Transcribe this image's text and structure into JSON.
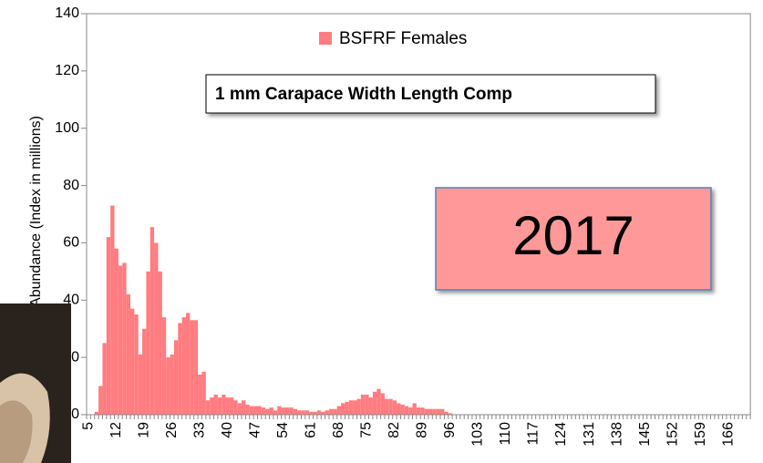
{
  "chart_data": {
    "type": "bar",
    "y_label": "Abundance (Index in millions)",
    "legend": "BSFRF Females",
    "annotations": [
      "1 mm Carapace Width Length Comp",
      "2017"
    ],
    "color": "#ff7c80",
    "ylim": [
      0,
      140
    ],
    "yticks": [
      0,
      20,
      40,
      60,
      80,
      100,
      120,
      140
    ],
    "grid": false,
    "categories": [
      5,
      null,
      null,
      null,
      null,
      null,
      null,
      12,
      null,
      null,
      null,
      null,
      null,
      null,
      19,
      null,
      null,
      null,
      null,
      null,
      null,
      26,
      null,
      null,
      null,
      null,
      null,
      null,
      33,
      null,
      null,
      null,
      null,
      null,
      null,
      40,
      null,
      null,
      null,
      null,
      null,
      null,
      47,
      null,
      null,
      null,
      null,
      null,
      null,
      54,
      null,
      null,
      null,
      null,
      null,
      null,
      61,
      null,
      null,
      null,
      null,
      null,
      null,
      68,
      null,
      null,
      null,
      null,
      null,
      null,
      75,
      null,
      null,
      null,
      null,
      null,
      null,
      82,
      null,
      null,
      null,
      null,
      null,
      null,
      89,
      null,
      null,
      null,
      null,
      null,
      null,
      96,
      null,
      null,
      null,
      null,
      null,
      null,
      103,
      null,
      null,
      null,
      null,
      null,
      null,
      110,
      null,
      null,
      null,
      null,
      null,
      null,
      117,
      null,
      null,
      null,
      null,
      null,
      null,
      124,
      null,
      null,
      null,
      null,
      null,
      null,
      131,
      null,
      null,
      null,
      null,
      null,
      null,
      138,
      null,
      null,
      null,
      null,
      null,
      null,
      145,
      null,
      null,
      null,
      null,
      null,
      null,
      152,
      null,
      null,
      null,
      null,
      null,
      null,
      159,
      null,
      null,
      null,
      null,
      null,
      null,
      166,
      null,
      null,
      null,
      null,
      null
    ],
    "values": [
      0,
      0,
      1,
      10,
      25,
      62,
      73,
      58,
      52,
      53,
      42,
      37,
      35,
      21,
      30,
      50,
      65.5,
      60,
      50,
      34,
      20,
      21,
      26,
      32,
      34,
      35.5,
      33,
      33,
      14,
      15,
      5,
      6,
      7,
      6,
      7,
      6,
      6,
      5,
      4,
      5,
      3.5,
      3,
      3,
      3,
      2.5,
      2,
      2.5,
      1.5,
      3,
      2.5,
      2.5,
      2.5,
      2,
      1.5,
      1.5,
      1.5,
      1,
      1,
      1.5,
      1,
      1.5,
      2,
      2,
      3,
      4,
      4.5,
      5,
      5,
      5.5,
      7,
      7,
      6,
      8,
      9,
      7.5,
      5.5,
      5.5,
      5,
      4,
      3.5,
      3,
      2.5,
      4,
      2.5,
      2.5,
      2,
      2,
      2,
      2,
      2,
      1,
      0.5,
      0,
      0,
      0,
      0,
      0,
      0,
      0,
      0,
      0,
      0,
      0,
      0,
      0,
      0,
      0,
      0,
      0,
      0,
      0,
      0,
      0,
      0,
      0,
      0,
      0,
      0,
      0,
      0,
      0,
      0,
      0,
      0,
      0,
      0,
      0,
      0,
      0,
      0,
      0,
      0,
      0,
      0,
      0,
      0,
      0,
      0,
      0,
      0,
      0,
      0,
      0,
      0,
      0,
      0,
      0,
      0,
      0,
      0,
      0,
      0,
      0,
      0,
      0,
      0,
      0,
      0,
      0,
      0,
      0,
      0,
      0,
      0,
      0,
      0,
      0
    ]
  }
}
